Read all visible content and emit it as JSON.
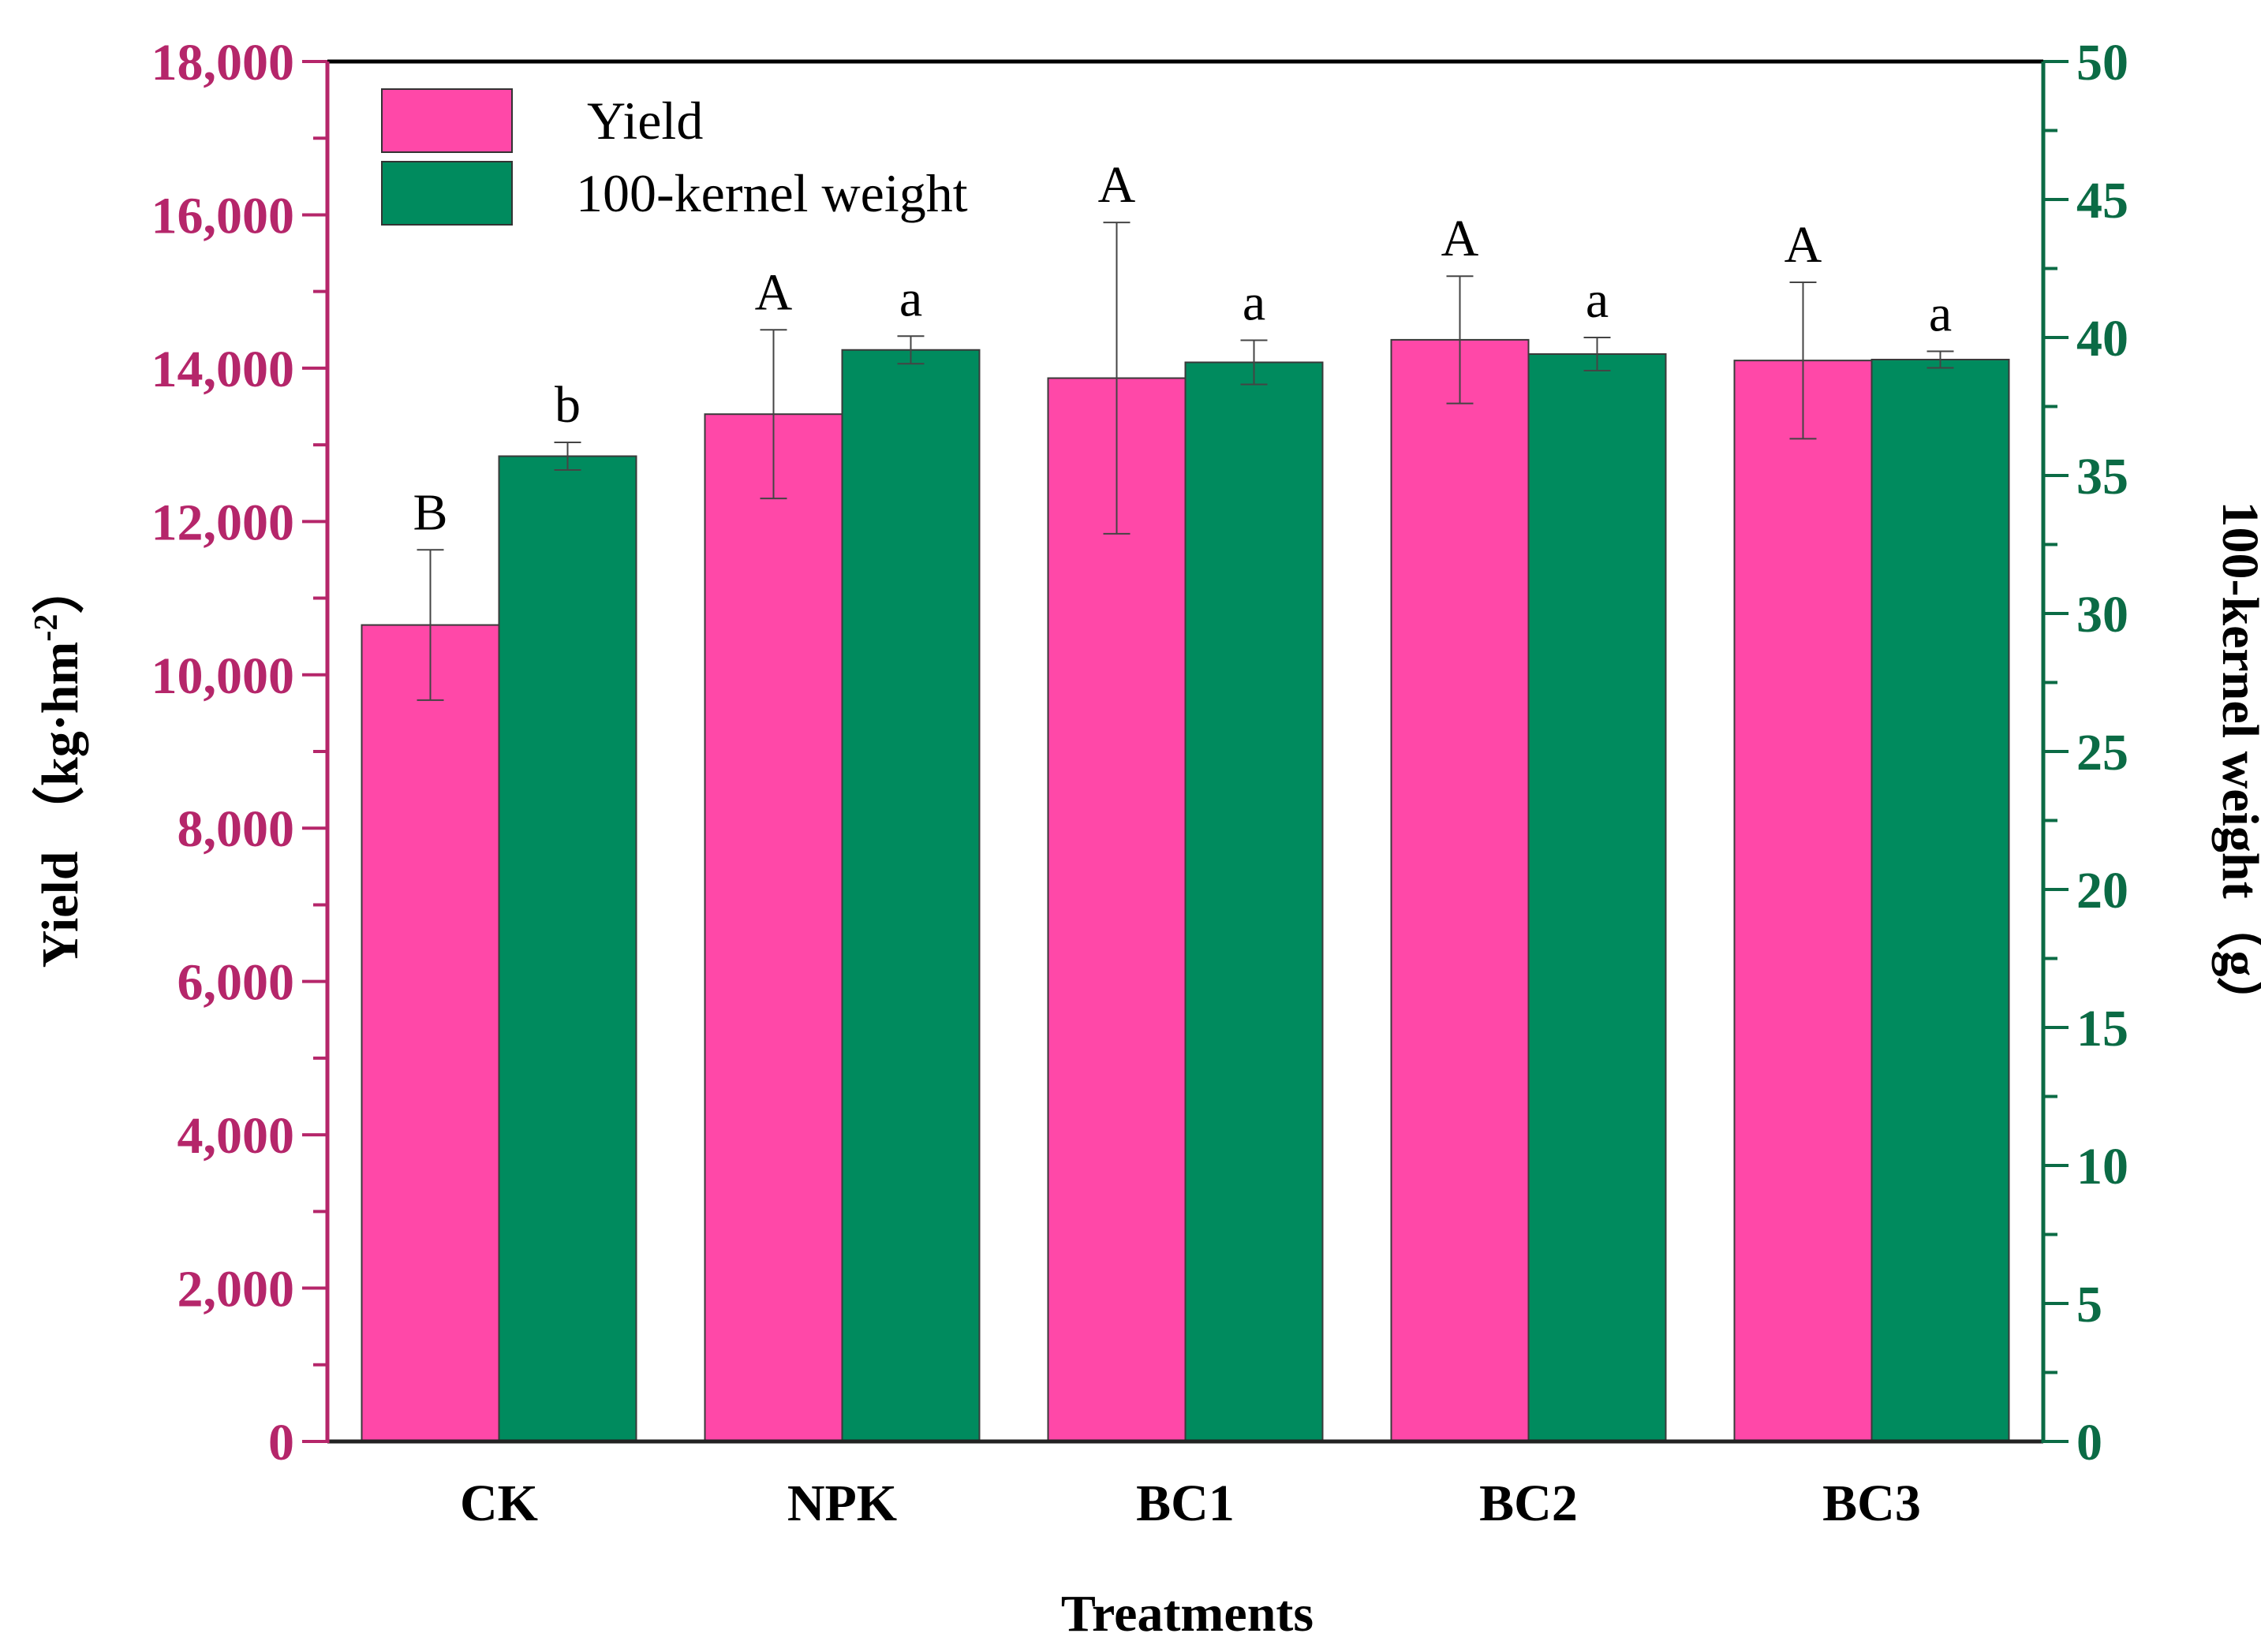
{
  "chart_data": {
    "type": "bar",
    "xlabel": "Treatments",
    "categories": [
      "CK",
      "NPK",
      "BC1",
      "BC2",
      "BC3"
    ],
    "y_left": {
      "label_main": "Yield （kg·hm",
      "label_sup": "-2",
      "label_close": "）",
      "lim": [
        0,
        18000
      ],
      "major_step": 2000,
      "ticks": [
        "0",
        "2,000",
        "4,000",
        "6,000",
        "8,000",
        "10,000",
        "12,000",
        "14,000",
        "16,000",
        "18,000"
      ],
      "color": "#b5266a"
    },
    "y_right": {
      "label": "100-kernel weight（g）",
      "lim": [
        0,
        50
      ],
      "major_step": 5,
      "ticks": [
        "0",
        "5",
        "10",
        "15",
        "20",
        "25",
        "30",
        "35",
        "40",
        "45",
        "50"
      ],
      "color": "#0b6b45"
    },
    "series": [
      {
        "name": "Yield",
        "axis": "left",
        "color": "#ff48a8",
        "values": [
          10650,
          13400,
          13870,
          14370,
          14100
        ],
        "errors": [
          980,
          1100,
          2030,
          830,
          1020
        ],
        "labels": [
          "B",
          "A",
          "A",
          "A",
          "A"
        ]
      },
      {
        "name": "100-kernel weight",
        "axis": "right",
        "color": "#008b5e",
        "values": [
          35.7,
          39.55,
          39.1,
          39.4,
          39.2
        ],
        "errors": [
          0.5,
          0.5,
          0.8,
          0.6,
          0.3
        ],
        "labels": [
          "b",
          "a",
          "a",
          "a",
          "a"
        ]
      }
    ],
    "legend_position": "top-left",
    "grid": false
  }
}
